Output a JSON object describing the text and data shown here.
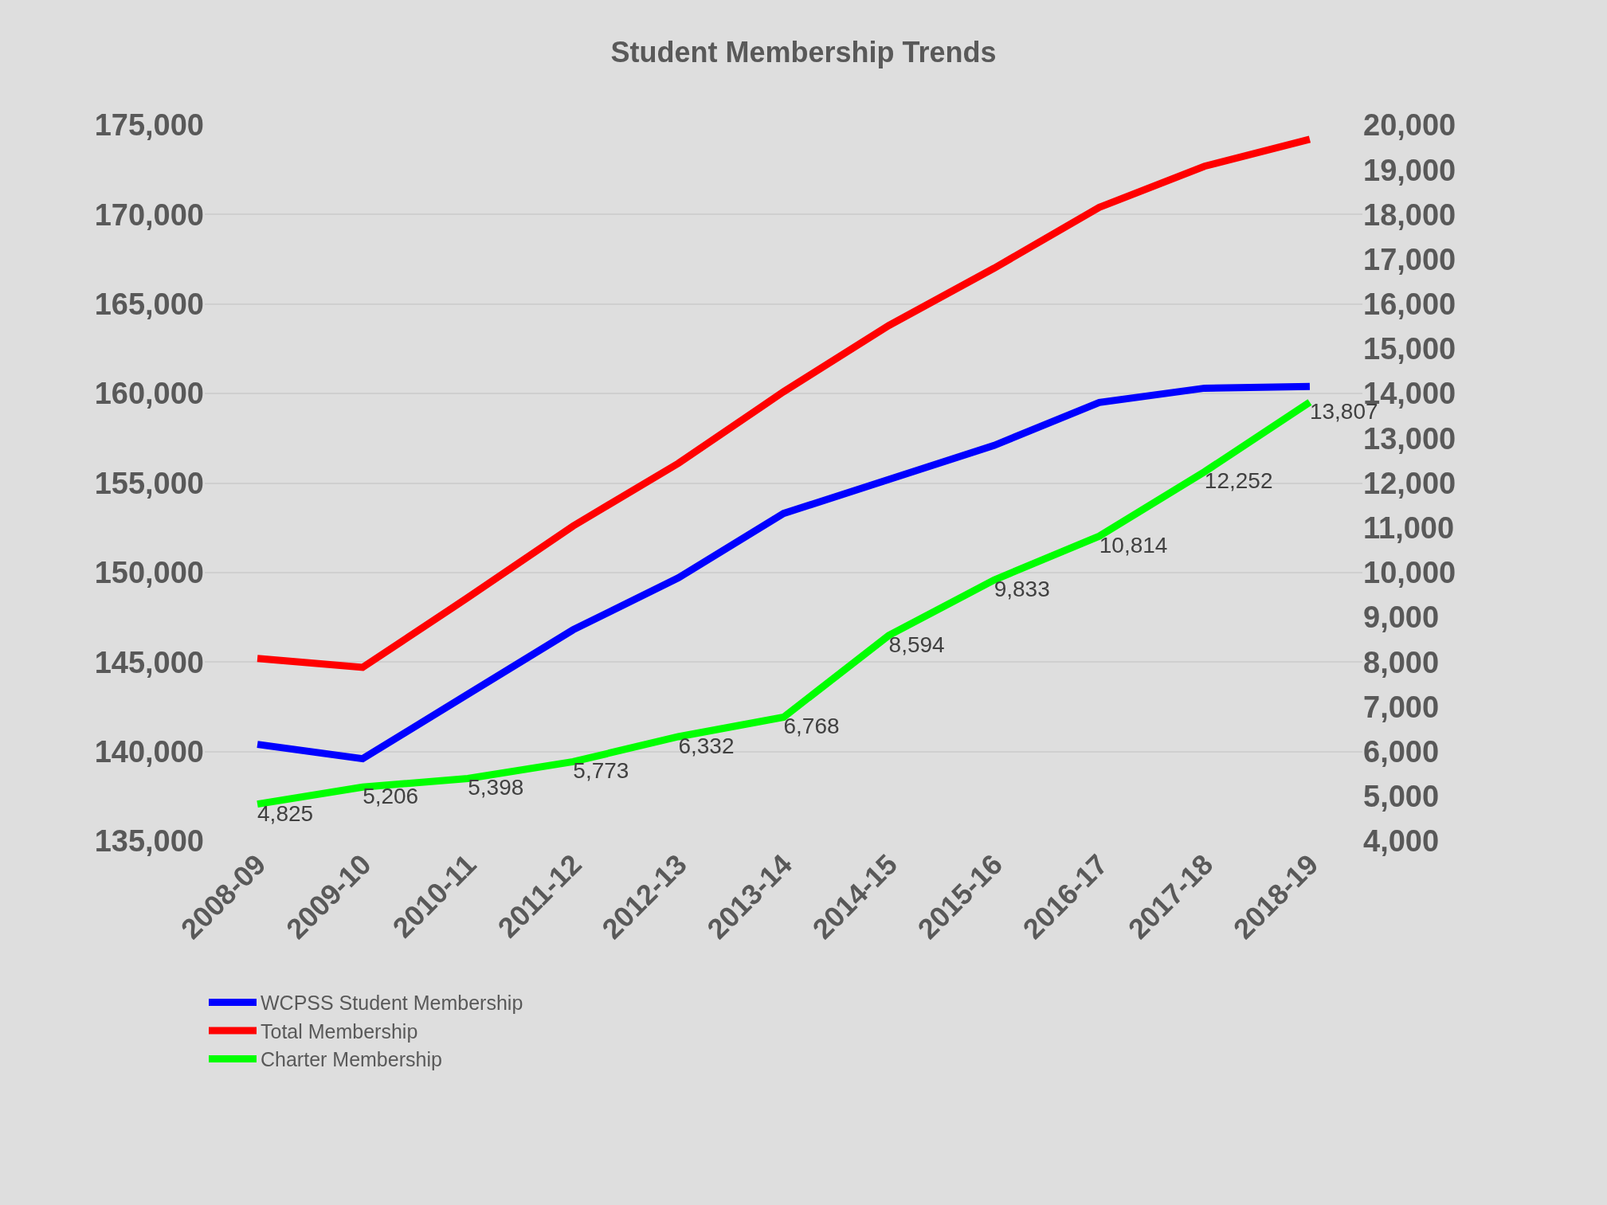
{
  "chart_data": {
    "type": "line",
    "title": "Student Membership Trends",
    "categories": [
      "2008-09",
      "2009-10",
      "2010-11",
      "2011-12",
      "2012-13",
      "2013-14",
      "2014-15",
      "2015-16",
      "2016-17",
      "2017-18",
      "2018-19"
    ],
    "series": [
      {
        "name": "WCPSS Student Membership",
        "color": "#0000ff",
        "values": [
          140400,
          139600,
          143200,
          146800,
          149700,
          153300,
          155200,
          157100,
          159500,
          160300,
          160400
        ]
      },
      {
        "name": "Total Membership",
        "color": "#ff0000",
        "values": [
          145200,
          144700,
          148600,
          152600,
          156100,
          160100,
          163800,
          167000,
          170400,
          172700,
          174200
        ]
      },
      {
        "name": "Charter Membership",
        "color": "#00ff00",
        "axis": "y2",
        "values": [
          4825,
          5206,
          5398,
          5773,
          6332,
          6768,
          8594,
          9833,
          10814,
          12252,
          13807
        ],
        "value_labels": [
          "4,825",
          "5,206",
          "5,398",
          "5,773",
          "6,332",
          "6,768",
          "8,594",
          "9,833",
          "10,814",
          "12,252",
          "13,807"
        ]
      }
    ],
    "ylim": [
      135000,
      175000
    ],
    "yticks": [
      {
        "value": 135000,
        "label": "135,000"
      },
      {
        "value": 140000,
        "label": "140,000"
      },
      {
        "value": 145000,
        "label": "145,000"
      },
      {
        "value": 150000,
        "label": "150,000"
      },
      {
        "value": 155000,
        "label": "155,000"
      },
      {
        "value": 160000,
        "label": "160,000"
      },
      {
        "value": 165000,
        "label": "165,000"
      },
      {
        "value": 170000,
        "label": "170,000"
      },
      {
        "value": 175000,
        "label": "175,000"
      }
    ],
    "y2lim": [
      4000,
      20000
    ],
    "y2ticks": [
      {
        "value": 4000,
        "label": "4,000"
      },
      {
        "value": 5000,
        "label": "5,000"
      },
      {
        "value": 6000,
        "label": "6,000"
      },
      {
        "value": 7000,
        "label": "7,000"
      },
      {
        "value": 8000,
        "label": "8,000"
      },
      {
        "value": 9000,
        "label": "9,000"
      },
      {
        "value": 10000,
        "label": "10,000"
      },
      {
        "value": 11000,
        "label": "11,000"
      },
      {
        "value": 12000,
        "label": "12,000"
      },
      {
        "value": 13000,
        "label": "13,000"
      },
      {
        "value": 14000,
        "label": "14,000"
      },
      {
        "value": 15000,
        "label": "15,000"
      },
      {
        "value": 16000,
        "label": "16,000"
      },
      {
        "value": 17000,
        "label": "17,000"
      },
      {
        "value": 18000,
        "label": "18,000"
      },
      {
        "value": 19000,
        "label": "19,000"
      },
      {
        "value": 20000,
        "label": "20,000"
      }
    ],
    "grid": "y",
    "legend": "bottom left",
    "marker": "none",
    "line_style": "solid"
  }
}
